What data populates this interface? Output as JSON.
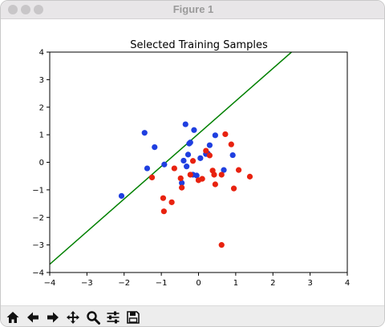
{
  "window": {
    "title": "Figure 1"
  },
  "toolbar": {
    "buttons": [
      {
        "name": "home-button",
        "icon": "home-icon"
      },
      {
        "name": "back-button",
        "icon": "arrow-left-icon"
      },
      {
        "name": "forward-button",
        "icon": "arrow-right-icon"
      },
      {
        "name": "pan-button",
        "icon": "move-icon"
      },
      {
        "name": "zoom-button",
        "icon": "magnifier-icon"
      },
      {
        "name": "configure-subplots-button",
        "icon": "sliders-icon"
      },
      {
        "name": "save-button",
        "icon": "floppy-disk-icon"
      }
    ]
  },
  "chart_data": {
    "type": "scatter",
    "title": "Selected Training Samples",
    "xlabel": "",
    "ylabel": "",
    "xlim": [
      -4,
      4
    ],
    "ylim": [
      -4,
      4
    ],
    "xticks": [
      "−4",
      "−3",
      "−2",
      "−1",
      "0",
      "1",
      "2",
      "3",
      "4"
    ],
    "yticks": [
      "−4",
      "−3",
      "−2",
      "−1",
      "0",
      "1",
      "2",
      "3",
      "4"
    ],
    "grid": false,
    "line": {
      "color": "#008000",
      "points": [
        [
          -4.0,
          -3.7
        ],
        [
          2.5,
          4.0
        ]
      ]
    },
    "series": [
      {
        "color": "#1f3fe0",
        "points": [
          [
            -2.07,
            -1.22
          ],
          [
            -1.45,
            1.07
          ],
          [
            -1.38,
            -0.22
          ],
          [
            -1.18,
            0.55
          ],
          [
            -0.92,
            -0.08
          ],
          [
            -0.35,
            1.38
          ],
          [
            -0.25,
            0.68
          ],
          [
            -0.28,
            0.28
          ],
          [
            -0.4,
            0.06
          ],
          [
            -0.32,
            -0.15
          ],
          [
            -0.45,
            -0.75
          ],
          [
            -0.22,
            0.72
          ],
          [
            -0.12,
            1.17
          ],
          [
            -0.15,
            -0.45
          ],
          [
            -0.05,
            -0.48
          ],
          [
            0.05,
            0.15
          ],
          [
            0.25,
            0.32
          ],
          [
            0.3,
            0.62
          ],
          [
            0.45,
            0.98
          ],
          [
            0.68,
            -0.28
          ],
          [
            0.92,
            0.26
          ],
          [
            0.2,
            0.3
          ]
        ]
      },
      {
        "color": "#e8220f",
        "points": [
          [
            -1.25,
            -0.55
          ],
          [
            -0.95,
            -1.3
          ],
          [
            -0.93,
            -1.78
          ],
          [
            -0.72,
            -1.45
          ],
          [
            -0.65,
            -0.22
          ],
          [
            -0.48,
            -0.58
          ],
          [
            -0.45,
            -0.92
          ],
          [
            -0.22,
            -0.45
          ],
          [
            -0.15,
            0.05
          ],
          [
            0.0,
            -0.65
          ],
          [
            0.1,
            -0.6
          ],
          [
            0.2,
            0.42
          ],
          [
            0.3,
            0.25
          ],
          [
            0.38,
            -0.3
          ],
          [
            0.42,
            -0.45
          ],
          [
            0.45,
            -0.8
          ],
          [
            0.62,
            -3.0
          ],
          [
            0.62,
            -0.45
          ],
          [
            0.72,
            1.02
          ],
          [
            0.88,
            0.65
          ],
          [
            0.95,
            -0.95
          ],
          [
            1.08,
            -0.28
          ],
          [
            1.38,
            -0.52
          ]
        ]
      }
    ]
  }
}
